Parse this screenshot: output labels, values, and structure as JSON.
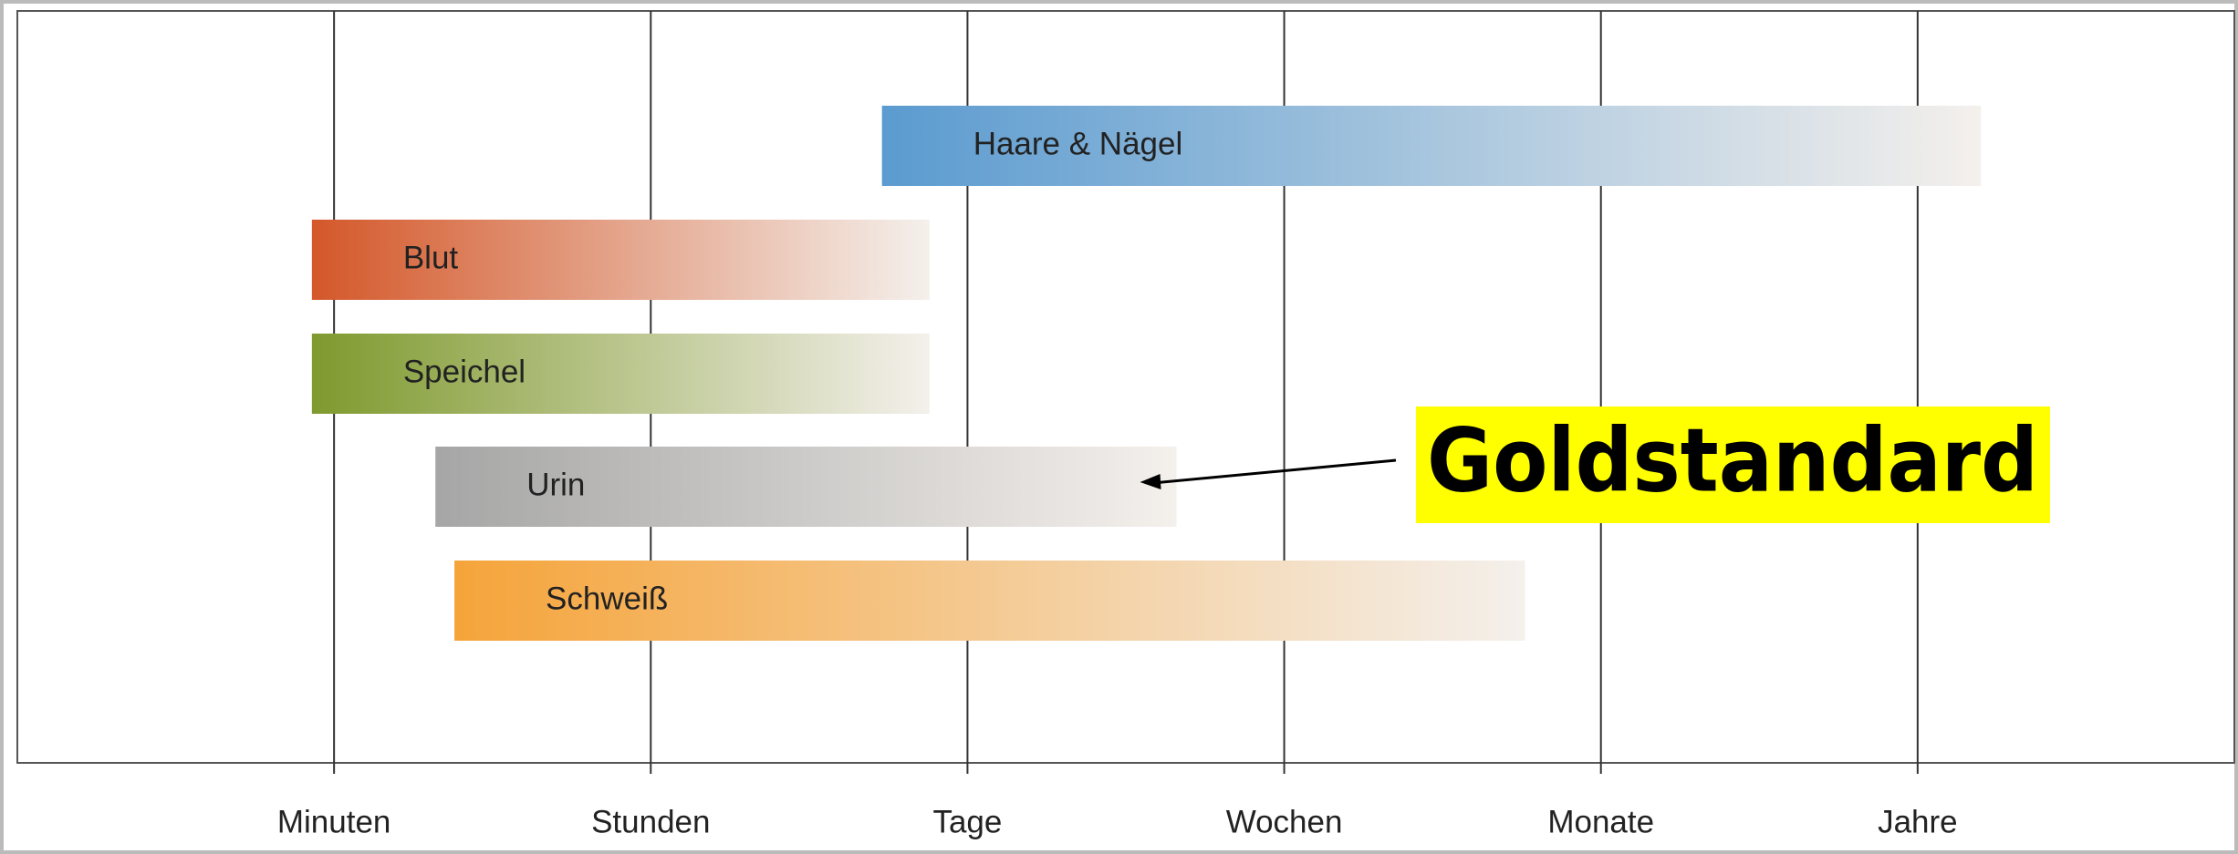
{
  "chart_data": {
    "type": "range-bar",
    "xlim": [
      -1,
      6
    ],
    "xticks": [
      {
        "value": 0,
        "label": "Minuten"
      },
      {
        "value": 1,
        "label": "Stunden"
      },
      {
        "value": 2,
        "label": "Tage"
      },
      {
        "value": 3,
        "label": "Wochen"
      },
      {
        "value": 4,
        "label": "Monate"
      },
      {
        "value": 5,
        "label": "Jahre"
      }
    ],
    "grid": true,
    "bars": [
      {
        "name": "Haare & Nägel",
        "color": "#5b9bd0",
        "start": 1.73,
        "end": 5.2
      },
      {
        "name": "Blut",
        "color": "#d4582a",
        "start": -0.07,
        "end": 1.88
      },
      {
        "name": "Speichel",
        "color": "#7f9a2e",
        "start": -0.07,
        "end": 1.88
      },
      {
        "name": "Urin",
        "color": "#a6a6a6",
        "start": 0.32,
        "end": 2.66
      },
      {
        "name": "Schweiß",
        "color": "#f5a43a",
        "start": 0.38,
        "end": 3.76
      }
    ],
    "annotation": {
      "text": "Goldstandard",
      "target": 3
    }
  }
}
